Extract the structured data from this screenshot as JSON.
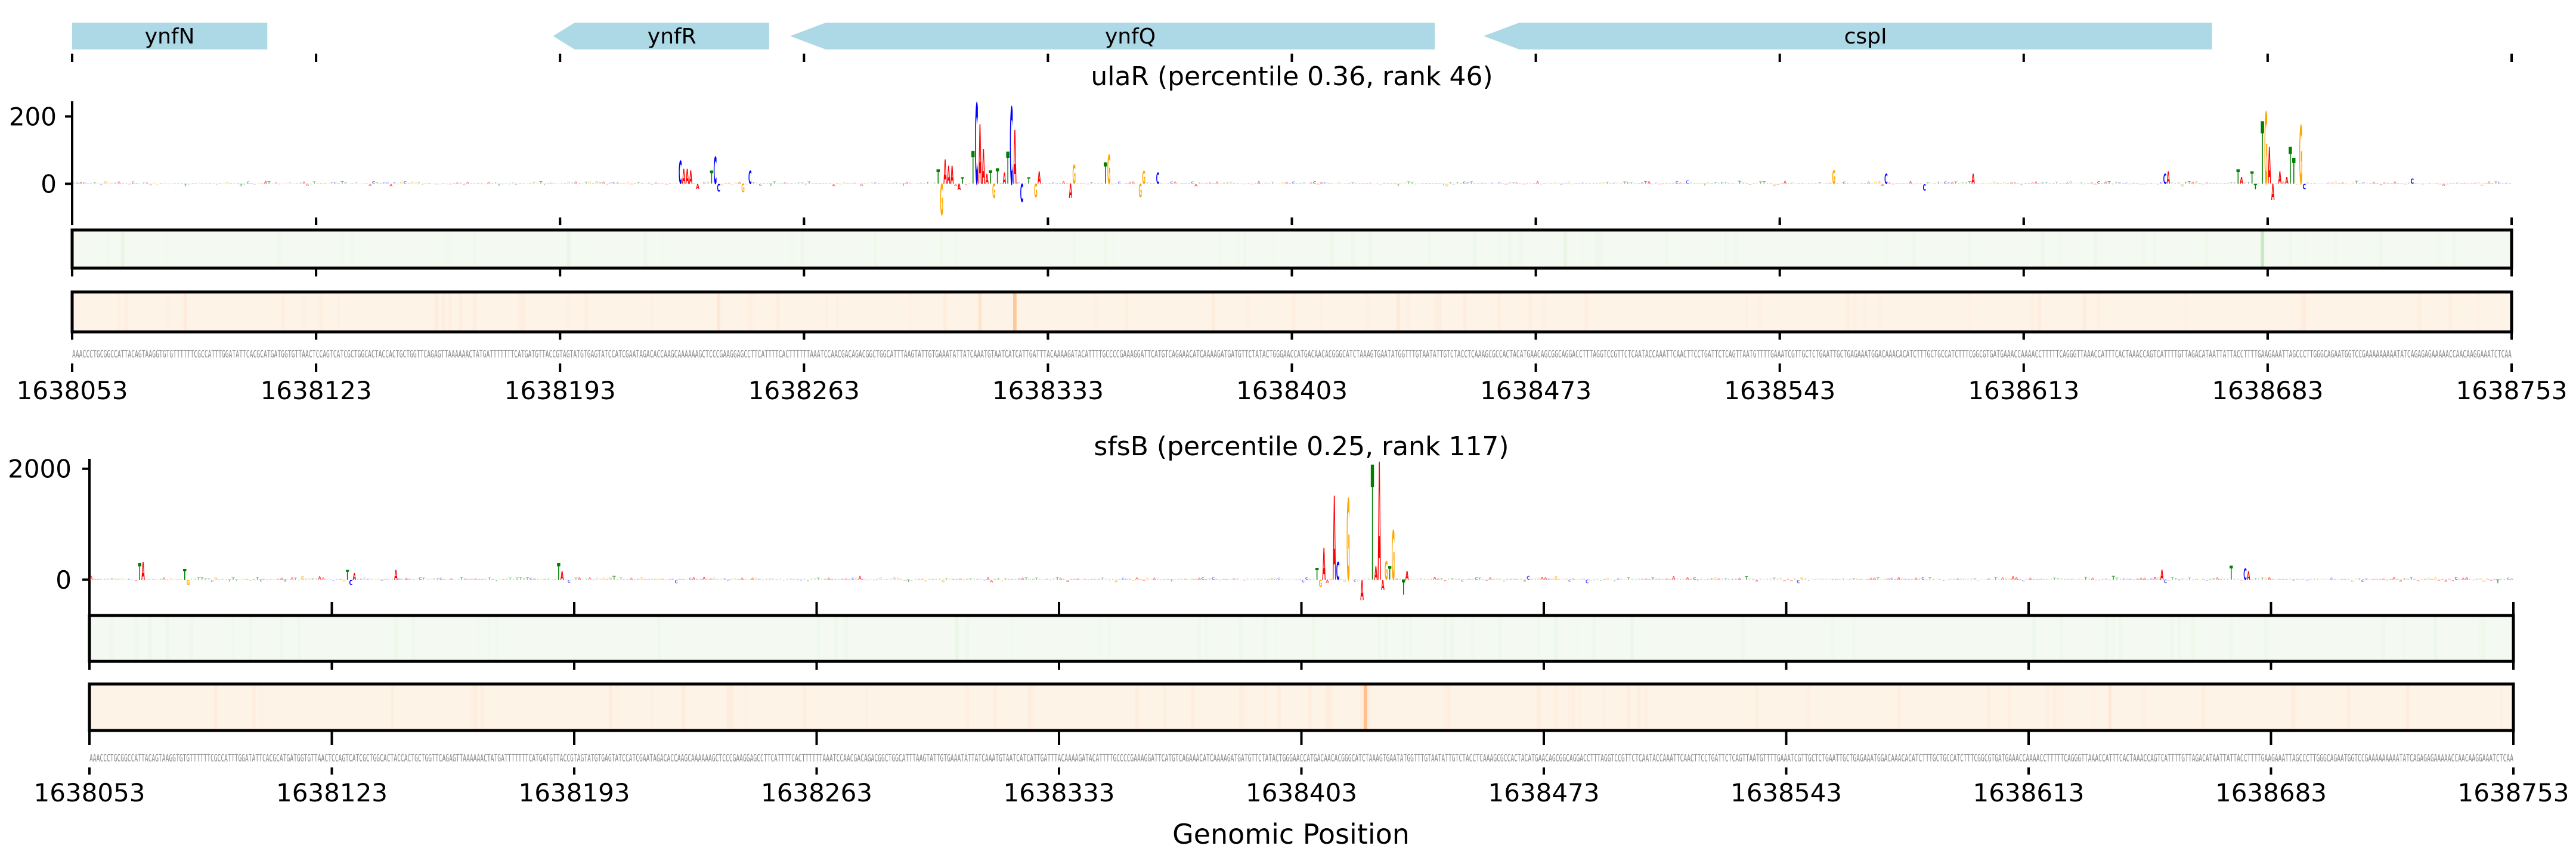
{
  "figure": {
    "xlabel": "Genomic Position"
  },
  "colors": {
    "A": "#ff0000",
    "C": "#0000ff",
    "G": "#ffa500",
    "T": "#008000",
    "gene": "#add8e6",
    "track_green": "#f4faf1",
    "track_green_hi": "#a8d8a0",
    "track_orange": "#fef3e7",
    "track_orange_hi": "#fdab68",
    "sequence_text": "#8a8a8a"
  },
  "genes": [
    {
      "name": "ynfN",
      "start": 1638053,
      "end": 1638109,
      "arrow": "none"
    },
    {
      "name": "ynfR",
      "start": 1638191,
      "end": 1638253,
      "arrow": "left"
    },
    {
      "name": "ynfQ",
      "start": 1638259,
      "end": 1638444,
      "arrow": "left"
    },
    {
      "name": "cspI",
      "start": 1638458,
      "end": 1638667,
      "arrow": "left"
    }
  ],
  "sequence": "AAACCCTGCGGCCATTACAGTAAGGTGTGTTTTTTCGCCATTTGGATATTCACGCATGATGGTGTTAACTCCAGTCATCGCTGGCACTACCACTGCTGGTTCAGAGTTAAAAAACTATGATTTTTTTCATGATGTTACCGTAGTATGTGAGTATCCATCGAATAGACACCAAGCAAAAAAGCTCCCGAAGGAGCCTTCATTTTCACTTTTTTAAATCCAACGACAGACGGCTGGCATTTAAGTATTGTGAAATATTATCAAATGTAATCATCATTGATTTACAAAAGATACATTTTGCCCCGAAAGGATTCATGTCAGAAACATCAAAAGATGATGTTCTATACTGGGAACCATGACAACACGGGCATCTAAAGTGAATATGGTTTGTAATATTGTCTACCTCAAAGCGCCACTACATGAACAGCGGCAGGACCTTTAGGTCCGTTCTCAATACCAAATTCAACTTCCTGATTCTCAGTTAATGTTTTGAAATCGTTGCTCTGAATTGCTGAGAAATGGACAAACACATCTTTGCTGCCATCTTTCGGCGTGATGAAACCAAAACCTTTTTCAGGGTTAAACCATTTCACTAAACCAGTCATTTTGTTAGACATAATTATTACCTTTTGAAGAAATTAGCCCTTGGGCAGAATGGTCCGAAAAAAAAATATCAGAGAGAAAAACCAACAAGGAAATCTCAA",
  "chart_data": [
    {
      "type": "bar",
      "subtype": "sequence-logo",
      "title": "ulaR (percentile 0.36, rank 46)",
      "xlim": [
        1638053,
        1638753
      ],
      "xticks": [
        1638053,
        1638123,
        1638193,
        1638263,
        1638333,
        1638403,
        1638473,
        1638543,
        1638613,
        1638683,
        1638753
      ],
      "ylim": [
        -100,
        245
      ],
      "yticks": [
        0,
        200
      ],
      "peaks": [
        {
          "pos": 1638227,
          "base": "C",
          "value": 68
        },
        {
          "pos": 1638228,
          "base": "A",
          "value": 45
        },
        {
          "pos": 1638229,
          "base": "A",
          "value": 45
        },
        {
          "pos": 1638230,
          "base": "A",
          "value": 40
        },
        {
          "pos": 1638232,
          "base": "A",
          "value": -15
        },
        {
          "pos": 1638236,
          "base": "T",
          "value": 39
        },
        {
          "pos": 1638237,
          "base": "C",
          "value": 81
        },
        {
          "pos": 1638238,
          "base": "C",
          "value": -23
        },
        {
          "pos": 1638245,
          "base": "G",
          "value": -25
        },
        {
          "pos": 1638247,
          "base": "C",
          "value": 39
        },
        {
          "pos": 1638301,
          "base": "T",
          "value": 42
        },
        {
          "pos": 1638302,
          "base": "G",
          "value": -93
        },
        {
          "pos": 1638303,
          "base": "A",
          "value": 72
        },
        {
          "pos": 1638304,
          "base": "A",
          "value": 54
        },
        {
          "pos": 1638305,
          "base": "A",
          "value": 54
        },
        {
          "pos": 1638307,
          "base": "A",
          "value": -19
        },
        {
          "pos": 1638308,
          "base": "T",
          "value": 20
        },
        {
          "pos": 1638311,
          "base": "T",
          "value": 98
        },
        {
          "pos": 1638312,
          "base": "C",
          "value": 240
        },
        {
          "pos": 1638313,
          "base": "A",
          "value": 177
        },
        {
          "pos": 1638314,
          "base": "A",
          "value": 103
        },
        {
          "pos": 1638315,
          "base": "A",
          "value": 30
        },
        {
          "pos": 1638316,
          "base": "T",
          "value": 40
        },
        {
          "pos": 1638317,
          "base": "G",
          "value": -42
        },
        {
          "pos": 1638318,
          "base": "T",
          "value": 46
        },
        {
          "pos": 1638320,
          "base": "A",
          "value": 33
        },
        {
          "pos": 1638321,
          "base": "T",
          "value": 95
        },
        {
          "pos": 1638322,
          "base": "C",
          "value": 228
        },
        {
          "pos": 1638323,
          "base": "A",
          "value": 160
        },
        {
          "pos": 1638325,
          "base": "C",
          "value": -54
        },
        {
          "pos": 1638327,
          "base": "T",
          "value": 20
        },
        {
          "pos": 1638329,
          "base": "G",
          "value": -40
        },
        {
          "pos": 1638330,
          "base": "A",
          "value": 37
        },
        {
          "pos": 1638339,
          "base": "A",
          "value": -42
        },
        {
          "pos": 1638340,
          "base": "G",
          "value": 56
        },
        {
          "pos": 1638349,
          "base": "T",
          "value": 63
        },
        {
          "pos": 1638350,
          "base": "G",
          "value": 86
        },
        {
          "pos": 1638359,
          "base": "G",
          "value": -40
        },
        {
          "pos": 1638360,
          "base": "G",
          "value": 38
        },
        {
          "pos": 1638364,
          "base": "C",
          "value": 33
        },
        {
          "pos": 1638558,
          "base": "G",
          "value": 40
        },
        {
          "pos": 1638573,
          "base": "C",
          "value": 30
        },
        {
          "pos": 1638584,
          "base": "C",
          "value": -20
        },
        {
          "pos": 1638598,
          "base": "A",
          "value": 30
        },
        {
          "pos": 1638653,
          "base": "C",
          "value": 30
        },
        {
          "pos": 1638654,
          "base": "A",
          "value": 37
        },
        {
          "pos": 1638674,
          "base": "T",
          "value": 42
        },
        {
          "pos": 1638675,
          "base": "A",
          "value": 21
        },
        {
          "pos": 1638678,
          "base": "T",
          "value": 37
        },
        {
          "pos": 1638679,
          "base": "T",
          "value": -16
        },
        {
          "pos": 1638681,
          "base": "T",
          "value": 186
        },
        {
          "pos": 1638682,
          "base": "G",
          "value": 214
        },
        {
          "pos": 1638683,
          "base": "A",
          "value": 109
        },
        {
          "pos": 1638684,
          "base": "A",
          "value": -49
        },
        {
          "pos": 1638686,
          "base": "A",
          "value": 37
        },
        {
          "pos": 1638688,
          "base": "A",
          "value": 21
        },
        {
          "pos": 1638689,
          "base": "T",
          "value": 109
        },
        {
          "pos": 1638690,
          "base": "T",
          "value": 77
        },
        {
          "pos": 1638692,
          "base": "G",
          "value": 174
        },
        {
          "pos": 1638693,
          "base": "C",
          "value": -16
        },
        {
          "pos": 1638724,
          "base": "C",
          "value": 16
        }
      ],
      "tracks": [
        {
          "color": "green",
          "highlights": [
            {
              "pos": 1638681,
              "intensity": 0.55
            },
            {
              "pos": 1638217,
              "intensity": 0.08
            },
            {
              "pos": 1638283,
              "intensity": 0.06
            },
            {
              "pos": 1638420,
              "intensity": 0.06
            }
          ]
        },
        {
          "color": "orange",
          "highlights": [
            {
              "pos": 1638323,
              "intensity": 0.6
            },
            {
              "pos": 1638313,
              "intensity": 0.2
            },
            {
              "pos": 1638303,
              "intensity": 0.08
            },
            {
              "pos": 1638238,
              "intensity": 0.15
            }
          ]
        }
      ]
    },
    {
      "type": "bar",
      "subtype": "sequence-logo",
      "title": "sfsB (percentile 0.25, rank 117)",
      "xlim": [
        1638053,
        1638753
      ],
      "xticks": [
        1638053,
        1638123,
        1638193,
        1638263,
        1638333,
        1638403,
        1638473,
        1638543,
        1638613,
        1638683,
        1638753
      ],
      "ylim": [
        -400,
        2180
      ],
      "yticks": [
        0,
        2000
      ],
      "peaks": [
        {
          "pos": 1638067,
          "base": "T",
          "value": 300
        },
        {
          "pos": 1638068,
          "base": "A",
          "value": 322
        },
        {
          "pos": 1638080,
          "base": "T",
          "value": 194
        },
        {
          "pos": 1638081,
          "base": "G",
          "value": -100
        },
        {
          "pos": 1638127,
          "base": "T",
          "value": 172
        },
        {
          "pos": 1638128,
          "base": "C",
          "value": -100
        },
        {
          "pos": 1638129,
          "base": "A",
          "value": 118
        },
        {
          "pos": 1638141,
          "base": "A",
          "value": 172
        },
        {
          "pos": 1638188,
          "base": "T",
          "value": 300
        },
        {
          "pos": 1638189,
          "base": "A",
          "value": 150
        },
        {
          "pos": 1638407,
          "base": "T",
          "value": 215
        },
        {
          "pos": 1638408,
          "base": "G",
          "value": -129
        },
        {
          "pos": 1638409,
          "base": "A",
          "value": 570
        },
        {
          "pos": 1638412,
          "base": "A",
          "value": 1516
        },
        {
          "pos": 1638413,
          "base": "C",
          "value": 323
        },
        {
          "pos": 1638416,
          "base": "G",
          "value": 1462
        },
        {
          "pos": 1638420,
          "base": "A",
          "value": -366
        },
        {
          "pos": 1638423,
          "base": "T",
          "value": 2075
        },
        {
          "pos": 1638424,
          "base": "A",
          "value": 247
        },
        {
          "pos": 1638425,
          "base": "A",
          "value": 2129
        },
        {
          "pos": 1638426,
          "base": "A",
          "value": -183
        },
        {
          "pos": 1638427,
          "base": "G",
          "value": 333
        },
        {
          "pos": 1638428,
          "base": "T",
          "value": 247
        },
        {
          "pos": 1638429,
          "base": "G",
          "value": 892
        },
        {
          "pos": 1638432,
          "base": "T",
          "value": -269
        },
        {
          "pos": 1638433,
          "base": "A",
          "value": 161
        },
        {
          "pos": 1638651,
          "base": "A",
          "value": 180
        },
        {
          "pos": 1638671,
          "base": "T",
          "value": 250
        },
        {
          "pos": 1638675,
          "base": "C",
          "value": 200
        },
        {
          "pos": 1638676,
          "base": "A",
          "value": 150
        }
      ],
      "tracks": [
        {
          "color": "green",
          "highlights": [
            {
              "pos": 1638141,
              "intensity": 0.05
            },
            {
              "pos": 1638425,
              "intensity": 0.05
            },
            {
              "pos": 1638671,
              "intensity": 0.05
            }
          ]
        },
        {
          "color": "orange",
          "highlights": [
            {
              "pos": 1638421,
              "intensity": 0.7
            },
            {
              "pos": 1638396,
              "intensity": 0.08
            },
            {
              "pos": 1638385,
              "intensity": 0.06
            }
          ]
        }
      ]
    }
  ]
}
